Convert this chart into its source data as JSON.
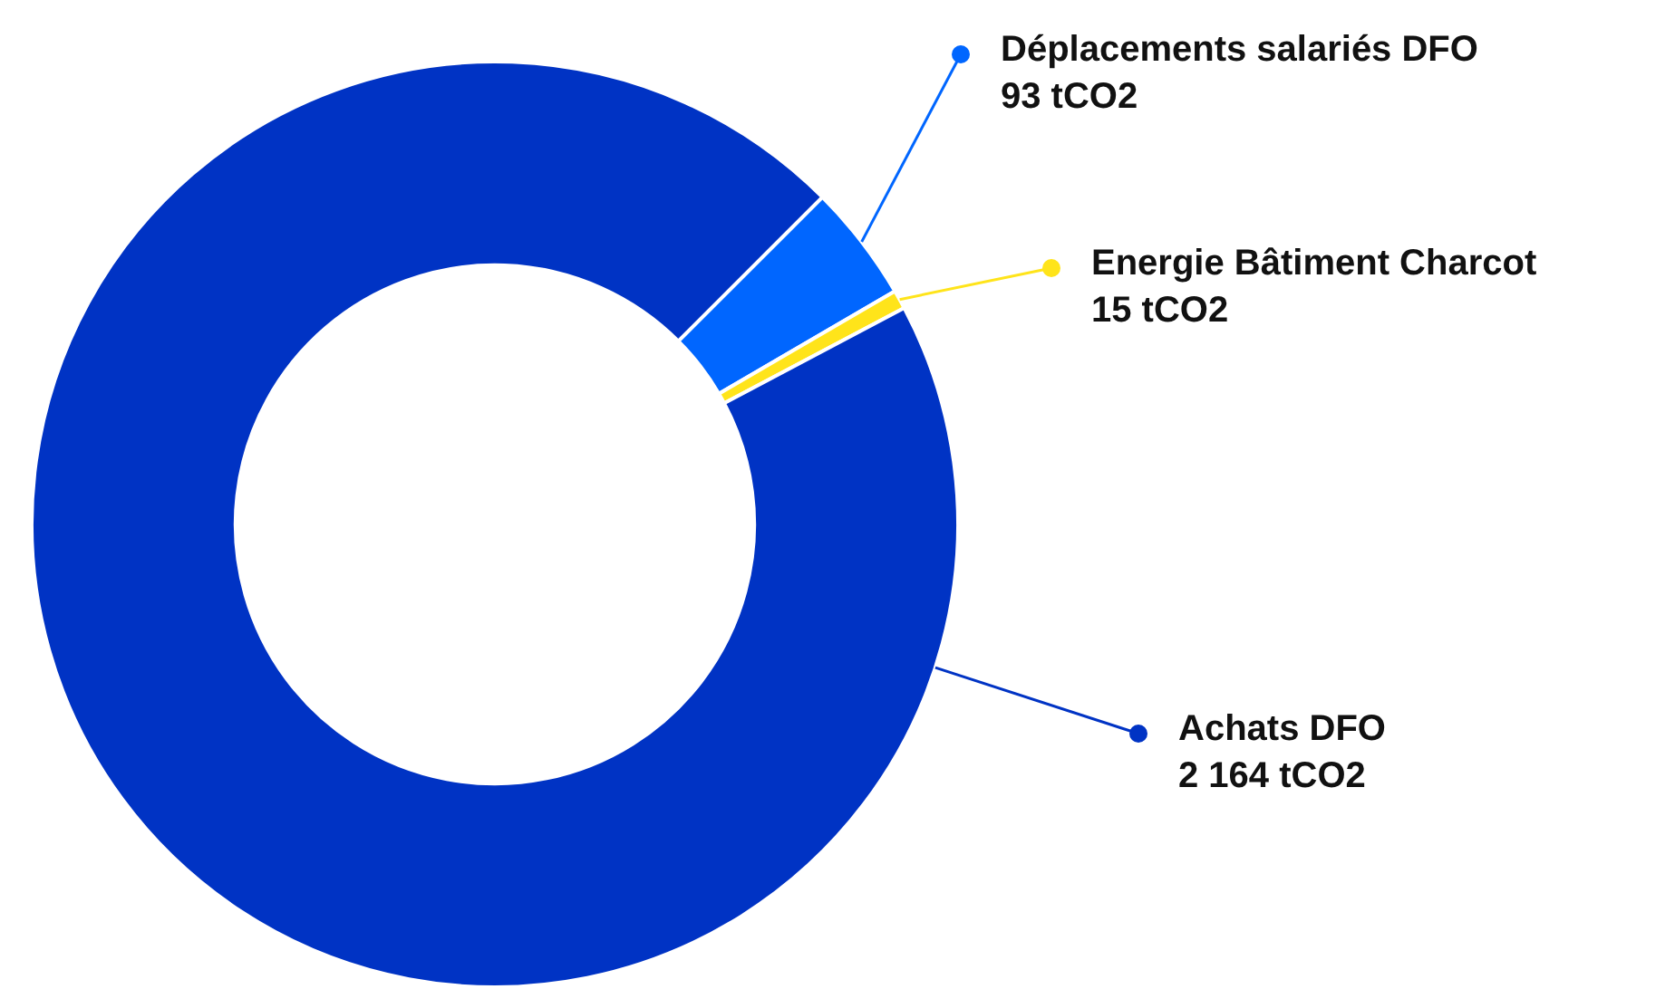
{
  "chart_data": {
    "type": "donut",
    "categories": [
      "Déplacements salariés DFO",
      "Energie Bâtiment Charcot",
      "Achats DFO"
    ],
    "values": [
      93,
      15,
      2164
    ],
    "colors": [
      "#0066ff",
      "#ffe41a",
      "#0033c4"
    ],
    "value_labels": [
      "93 tCO2",
      "15 tCO2",
      "2 164 tCO2"
    ],
    "legend": "right"
  }
}
